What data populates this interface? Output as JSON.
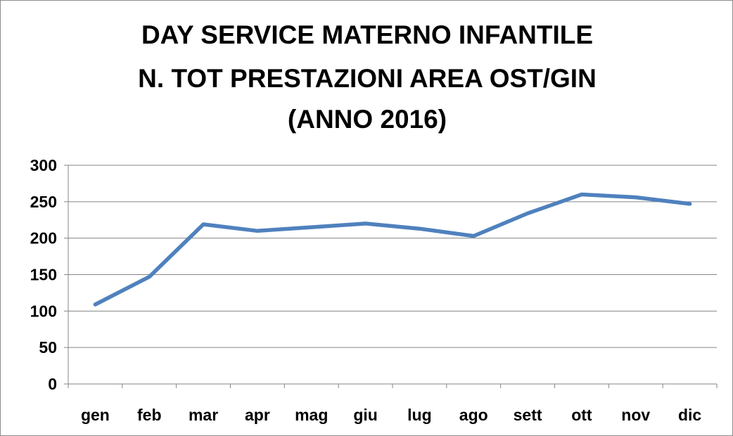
{
  "chart_data": {
    "type": "line",
    "title_lines": [
      "DAY SERVICE MATERNO INFANTILE",
      "N. TOT PRESTAZIONI AREA OST/GIN",
      "(ANNO 2016)"
    ],
    "xlabel": "",
    "ylabel": "",
    "categories": [
      "gen",
      "feb",
      "mar",
      "apr",
      "mag",
      "giu",
      "lug",
      "ago",
      "sett",
      "ott",
      "nov",
      "dic"
    ],
    "series": [
      {
        "values": [
          109,
          147,
          219,
          210,
          215,
          220,
          213,
          203,
          234,
          260,
          256,
          247
        ],
        "color": "#4f81bd"
      }
    ],
    "ylim": [
      0,
      300
    ],
    "yticks": [
      0,
      50,
      100,
      150,
      200,
      250,
      300
    ],
    "grid": true,
    "legend": "none"
  }
}
